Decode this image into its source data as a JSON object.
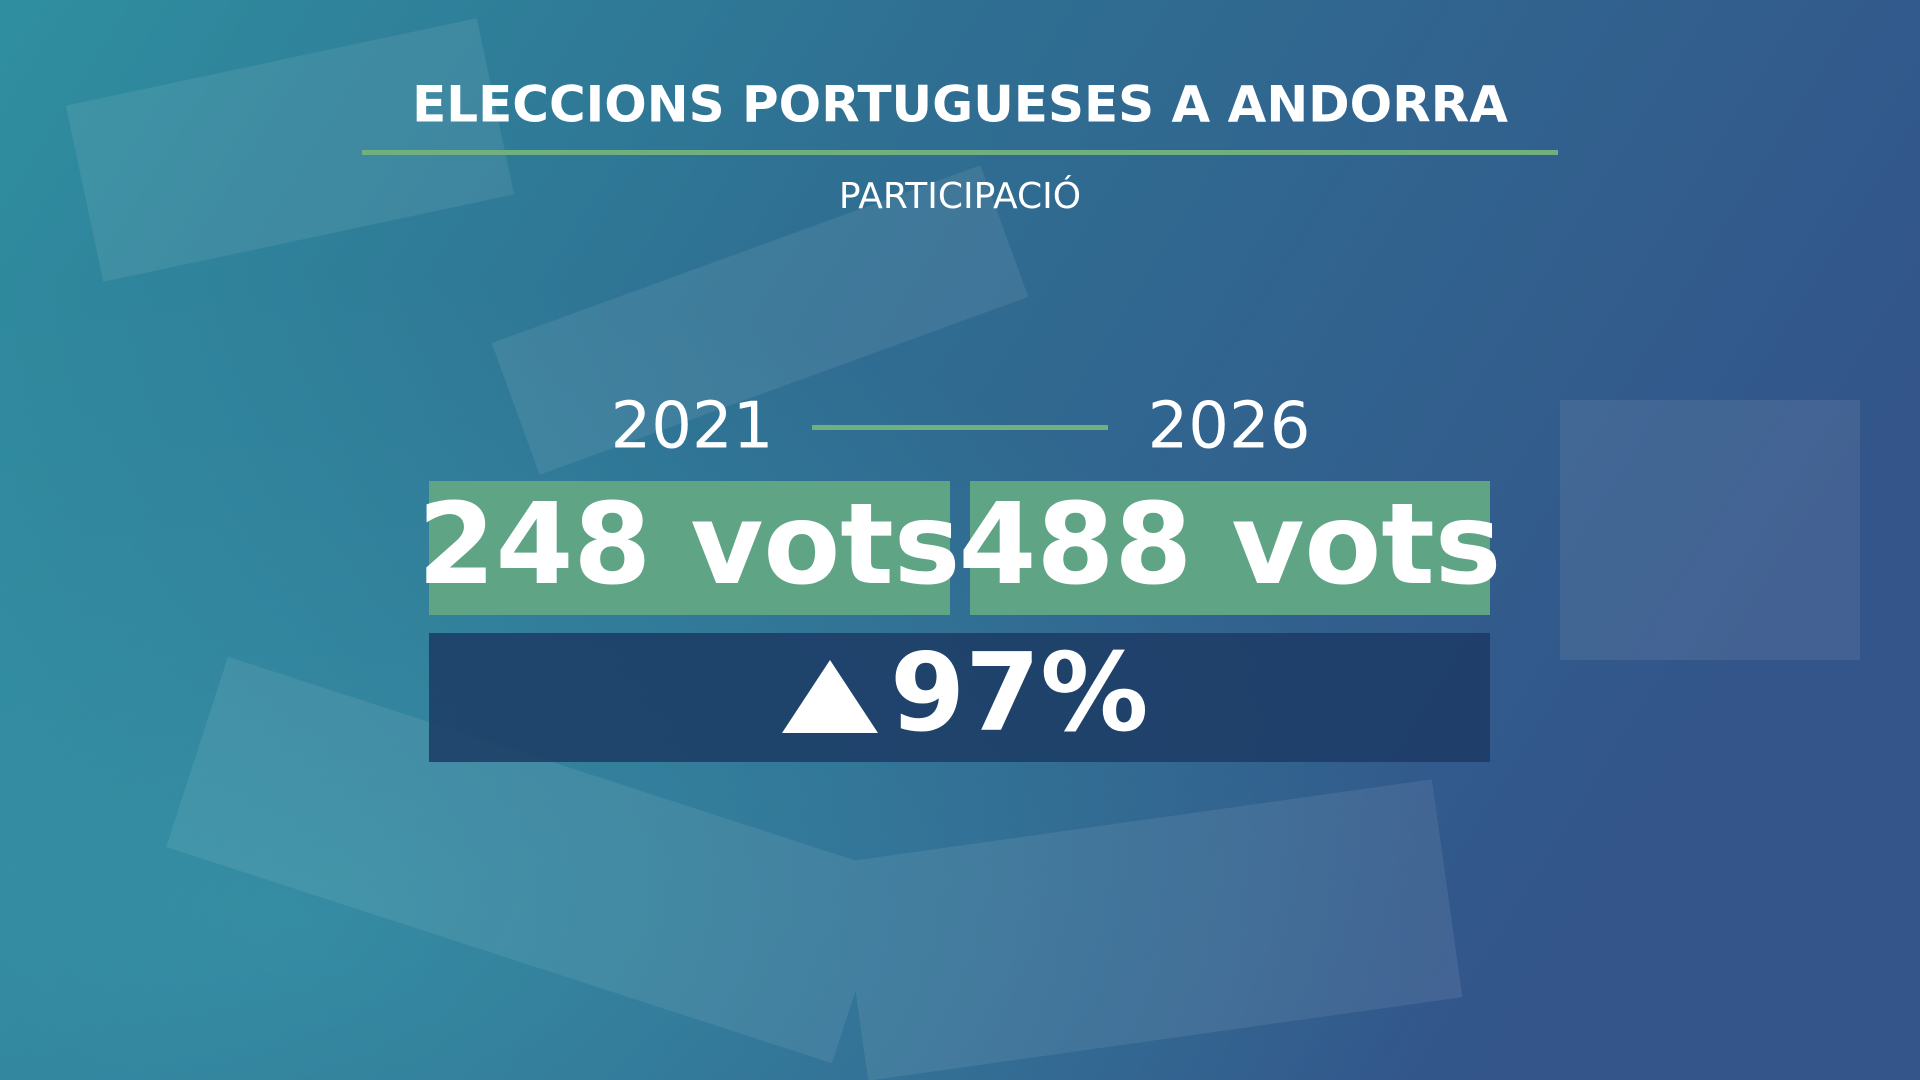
{
  "header": {
    "title": "ELECCIONS PORTUGUESES A ANDORRA",
    "subtitle": "PARTICIPACIÓ"
  },
  "comparison": {
    "periods": [
      {
        "year": "2021",
        "votes": "248 vots"
      },
      {
        "year": "2026",
        "votes": "488 vots"
      }
    ],
    "change": "97%"
  }
}
